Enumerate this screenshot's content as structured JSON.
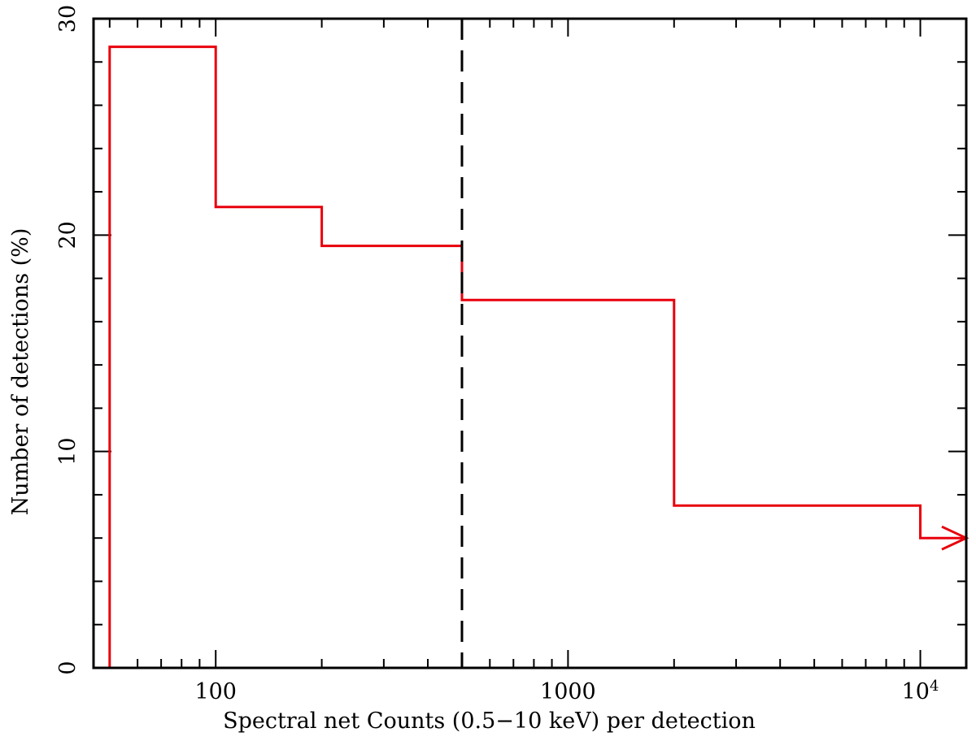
{
  "chart_data": {
    "type": "line",
    "step": true,
    "title": "",
    "xlabel": "Spectral net Counts (0.5−10 keV) per detection",
    "ylabel": "Number of detections (%)",
    "xscale": "log",
    "xlim": [
      45,
      13500
    ],
    "ylim": [
      0,
      30
    ],
    "x_tick_labels": [
      {
        "value": 100,
        "label": "100"
      },
      {
        "value": 1000,
        "label": "1000"
      },
      {
        "value": 10000,
        "label": "10",
        "sup": "4"
      }
    ],
    "y_tick_labels": [
      {
        "value": 0,
        "label": "0"
      },
      {
        "value": 10,
        "label": "10"
      },
      {
        "value": 20,
        "label": "20"
      },
      {
        "value": 30,
        "label": "30"
      }
    ],
    "series": [
      {
        "color": "#e8000b",
        "bins": [
          {
            "x0": 50,
            "x1": 100,
            "y": 28.7
          },
          {
            "x0": 100,
            "x1": 200,
            "y": 21.3
          },
          {
            "x0": 200,
            "x1": 500,
            "y": 19.5
          },
          {
            "x0": 500,
            "x1": 2000,
            "y": 17.0
          },
          {
            "x0": 2000,
            "x1": 10000,
            "y": 7.5
          },
          {
            "x0": 10000,
            "x1": 13500,
            "y": 6.0,
            "open_ended": true
          }
        ]
      }
    ],
    "reference_lines": [
      {
        "x": 500,
        "style": "dashed",
        "color": "#000000"
      }
    ],
    "grid": false,
    "legend": "none"
  }
}
